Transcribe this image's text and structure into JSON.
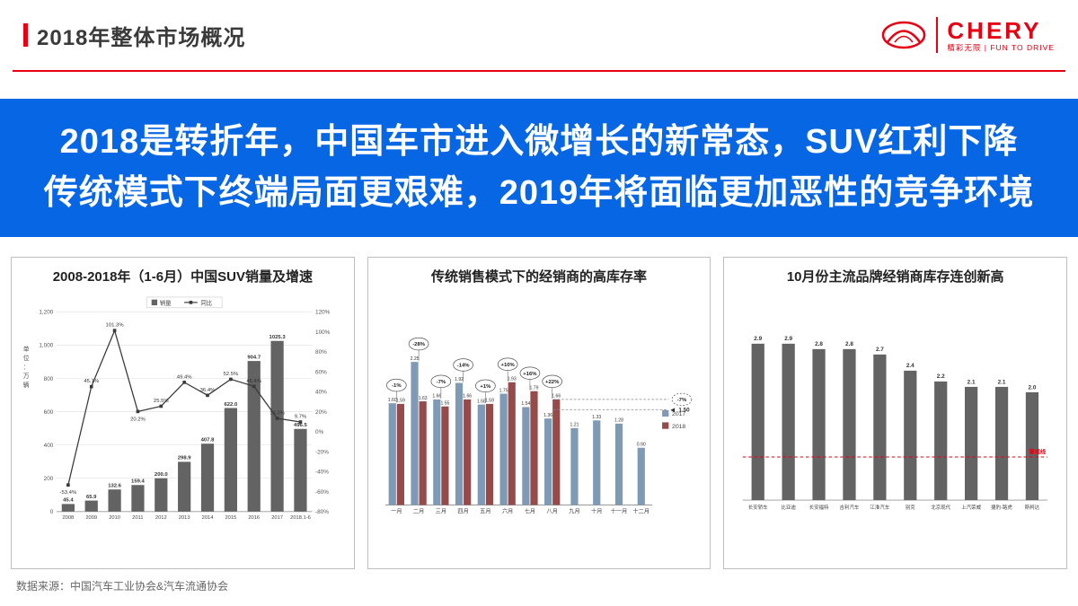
{
  "header": {
    "title": "2018年整体市场概况",
    "logo": {
      "wordmark": "CHERY",
      "tagline": "精彩无限 | FUN TO DRIVE"
    }
  },
  "banner": {
    "line1": "2018是转折年，中国车市进入微增长的新常态，SUV红利下降",
    "line2": "传统模式下终端局面更艰难，2019年将面临更加恶性的竞争环境"
  },
  "colors": {
    "accent_red": "#e60012",
    "banner_blue": "#0666e4",
    "bar_gray": "#636363",
    "line_dark": "#3a3a3a",
    "series_2017": "#7e9ab5",
    "series_2018": "#964b4a",
    "warning_red": "#e60012"
  },
  "chart_data": [
    {
      "type": "bar+line",
      "title": "2008-2018年（1-6月）中国SUV销量及增速",
      "ylabel": "单位：万辆",
      "ylim": [
        0,
        1200
      ],
      "y2lim": [
        -80,
        120
      ],
      "categories": [
        "2008",
        "2009",
        "2010",
        "2011",
        "2012",
        "2013",
        "2014",
        "2015",
        "2016",
        "2017",
        "2018.1-6"
      ],
      "series": [
        {
          "name": "销量",
          "type": "bar",
          "values": [
            45.4,
            65.9,
            132.6,
            159.4,
            200.0,
            298.9,
            407.8,
            622.0,
            904.7,
            1025.3,
            496.5
          ]
        },
        {
          "name": "同比",
          "type": "line",
          "values": [
            -53.4,
            45.1,
            101.3,
            20.2,
            25.5,
            49.4,
            36.4,
            52.5,
            45.4,
            13.3,
            9.7
          ]
        }
      ],
      "legend": [
        "销量",
        "同比"
      ]
    },
    {
      "type": "grouped-bar",
      "title": "传统销售模式下的经销商的高库存率",
      "ylim": [
        0,
        2.6
      ],
      "categories": [
        "一月",
        "二月",
        "三月",
        "四月",
        "五月",
        "六月",
        "七月",
        "八月",
        "九月",
        "十月",
        "十一月",
        "十二月"
      ],
      "series": [
        {
          "name": "2017",
          "values": [
            1.6,
            2.25,
            1.66,
            1.92,
            1.58,
            1.75,
            1.54,
            1.36,
            1.21,
            1.33,
            1.28,
            0.9
          ]
        },
        {
          "name": "2018",
          "values": [
            1.59,
            1.63,
            1.55,
            1.66,
            1.59,
            1.93,
            1.79,
            1.66,
            null,
            null,
            null,
            null
          ]
        }
      ],
      "deltas": [
        "-1%",
        "-28%",
        "-7%",
        "-14%",
        "+1%",
        "+10%",
        "+16%",
        "+22%"
      ],
      "annotations": [
        {
          "label": "-7%",
          "value": 1.66
        },
        {
          "label": "1.50",
          "value": 1.5
        }
      ],
      "legend": [
        "2017",
        "2018"
      ]
    },
    {
      "type": "bar",
      "title": "10月份主流品牌经销商库存连创新高",
      "ylim": [
        0,
        3.4
      ],
      "categories": [
        "长安轿车",
        "比亚迪",
        "长安福特",
        "吉利汽车",
        "江淮汽车",
        "别克",
        "北京现代",
        "上汽荣威",
        "捷豹-路虎",
        "斯柯达"
      ],
      "values": [
        2.9,
        2.9,
        2.8,
        2.8,
        2.7,
        2.4,
        2.2,
        2.1,
        2.1,
        2.0
      ],
      "warning_line": {
        "label": "警戒线",
        "value": 0.8
      }
    }
  ],
  "footer": {
    "source": "数据来源：中国汽车工业协会&汽车流通协会"
  }
}
